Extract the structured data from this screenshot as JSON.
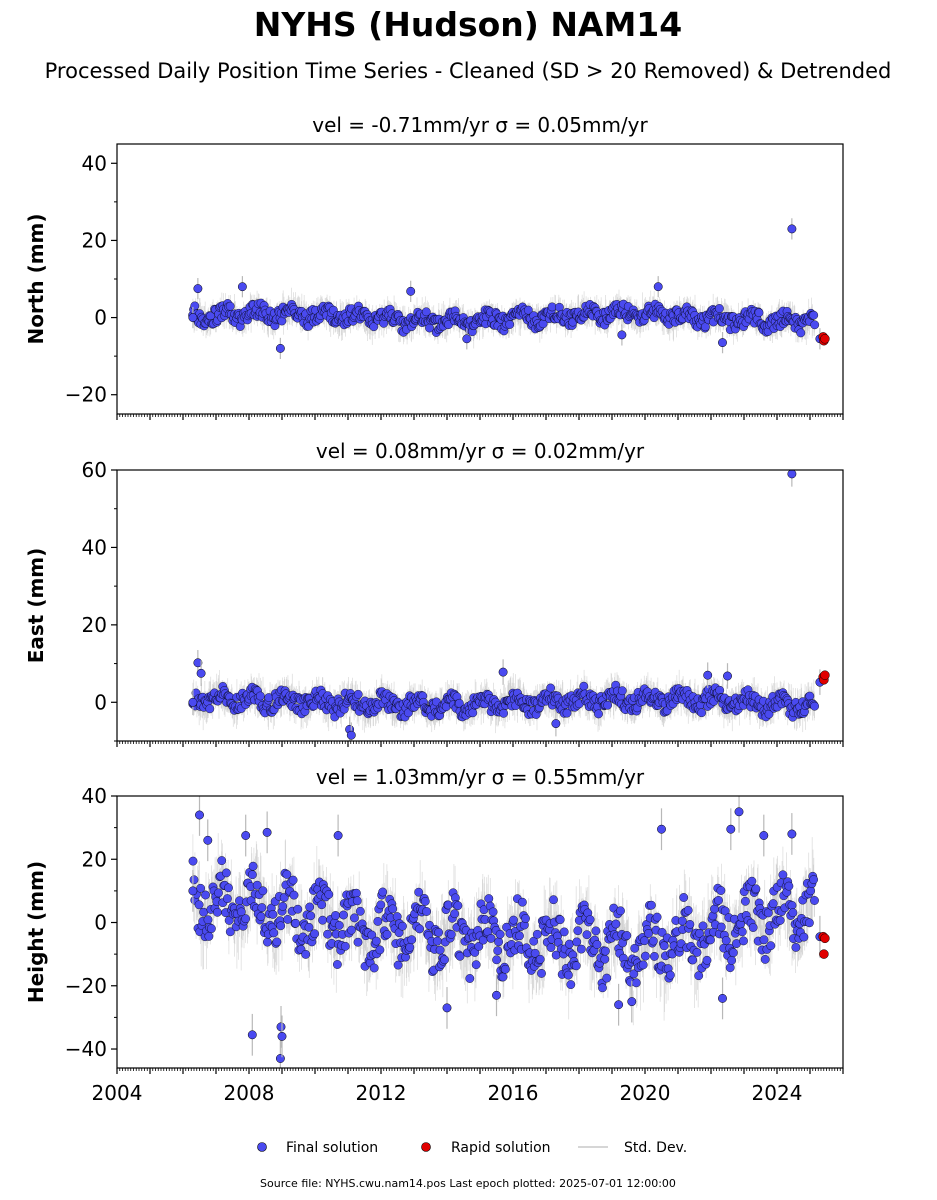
{
  "title": "NYHS (Hudson) NAM14",
  "subtitle": "Processed Daily Position Time Series - Cleaned (SD > 20 Removed) & Detrended",
  "footer": "Source file: NYHS.cwu.nam14.pos  Last epoch plotted: 2025-07-01 12:00:00",
  "legend": [
    {
      "label": "Final solution",
      "color": "#4a4af0",
      "marker": "circle"
    },
    {
      "label": "Rapid solution",
      "color": "#e00000",
      "marker": "circle"
    },
    {
      "label": "Std. Dev.",
      "color": "#c8c8c8",
      "marker": "line"
    }
  ],
  "colors": {
    "final": "#4a4af0",
    "rapid": "#e00000",
    "stddev": "#c0c0c0",
    "edge": "#000000"
  },
  "chart_data": [
    {
      "type": "scatter",
      "panel_title": "vel = -0.71mm/yr   σ = 0.05mm/yr",
      "ylabel": "North (mm)",
      "ylim": [
        -25,
        45
      ],
      "yticks": [
        -20,
        0,
        20,
        40
      ],
      "xlim": [
        2004,
        2026
      ],
      "xticks": [
        2004,
        2008,
        2012,
        2016,
        2020,
        2024
      ],
      "grid": false,
      "series": [
        {
          "name": "Final solution",
          "x": [
            2006.3,
            2006.45,
            2007.8,
            2008.95,
            2012.9,
            2014.6,
            2019.3,
            2020.4,
            2022.35,
            2024.45,
            2025.3
          ],
          "y": [
            0,
            7.5,
            8,
            -8,
            6.8,
            -5.5,
            -4.5,
            8,
            -6.5,
            23,
            -5.5
          ]
        },
        {
          "name": "Rapid solution",
          "x": [
            2025.4,
            2025.42,
            2025.45
          ],
          "y": [
            -5,
            -6,
            -5.5
          ]
        }
      ]
    },
    {
      "type": "scatter",
      "panel_title": "vel = 0.08mm/yr   σ = 0.02mm/yr",
      "ylabel": "East (mm)",
      "ylim": [
        -10,
        60
      ],
      "yticks": [
        0,
        20,
        40,
        60
      ],
      "xlim": [
        2004,
        2026
      ],
      "xticks": [
        2004,
        2008,
        2012,
        2016,
        2020,
        2024
      ],
      "grid": false,
      "series": [
        {
          "name": "Final solution",
          "x": [
            2006.3,
            2006.45,
            2006.55,
            2011.05,
            2011.1,
            2015.7,
            2017.3,
            2021.9,
            2022.5,
            2024.45,
            2025.3
          ],
          "y": [
            0,
            10.2,
            7.5,
            -7,
            -8.5,
            7.8,
            -5.5,
            7,
            6.8,
            59,
            5.2
          ]
        },
        {
          "name": "Rapid solution",
          "x": [
            2025.4,
            2025.42,
            2025.45
          ],
          "y": [
            6.5,
            5.8,
            7
          ]
        }
      ]
    },
    {
      "type": "scatter",
      "panel_title": "vel = 1.03mm/yr   σ = 0.55mm/yr",
      "ylabel": "Height (mm)",
      "ylim": [
        -46,
        40
      ],
      "yticks": [
        -40,
        -20,
        0,
        20,
        40
      ],
      "xlim": [
        2004,
        2026
      ],
      "xticks": [
        2004,
        2008,
        2012,
        2016,
        2020,
        2024
      ],
      "grid": false,
      "series": [
        {
          "name": "Final solution",
          "x": [
            2006.3,
            2006.5,
            2006.75,
            2007.9,
            2008.1,
            2008.55,
            2008.95,
            2008.97,
            2009.0,
            2010.7,
            2014.0,
            2015.5,
            2019.2,
            2019.6,
            2020.5,
            2022.35,
            2022.6,
            2022.85,
            2023.6,
            2024.45,
            2025.3
          ],
          "y": [
            10,
            34,
            26,
            27.5,
            -35.5,
            28.5,
            -43,
            -33,
            -36,
            27.5,
            -27,
            -23,
            -26,
            -25,
            29.5,
            -24,
            29.5,
            35,
            27.5,
            28,
            -4.5
          ]
        },
        {
          "name": "Rapid solution",
          "x": [
            2025.4,
            2025.42,
            2025.45
          ],
          "y": [
            -4.5,
            -10,
            -5
          ]
        }
      ]
    }
  ]
}
